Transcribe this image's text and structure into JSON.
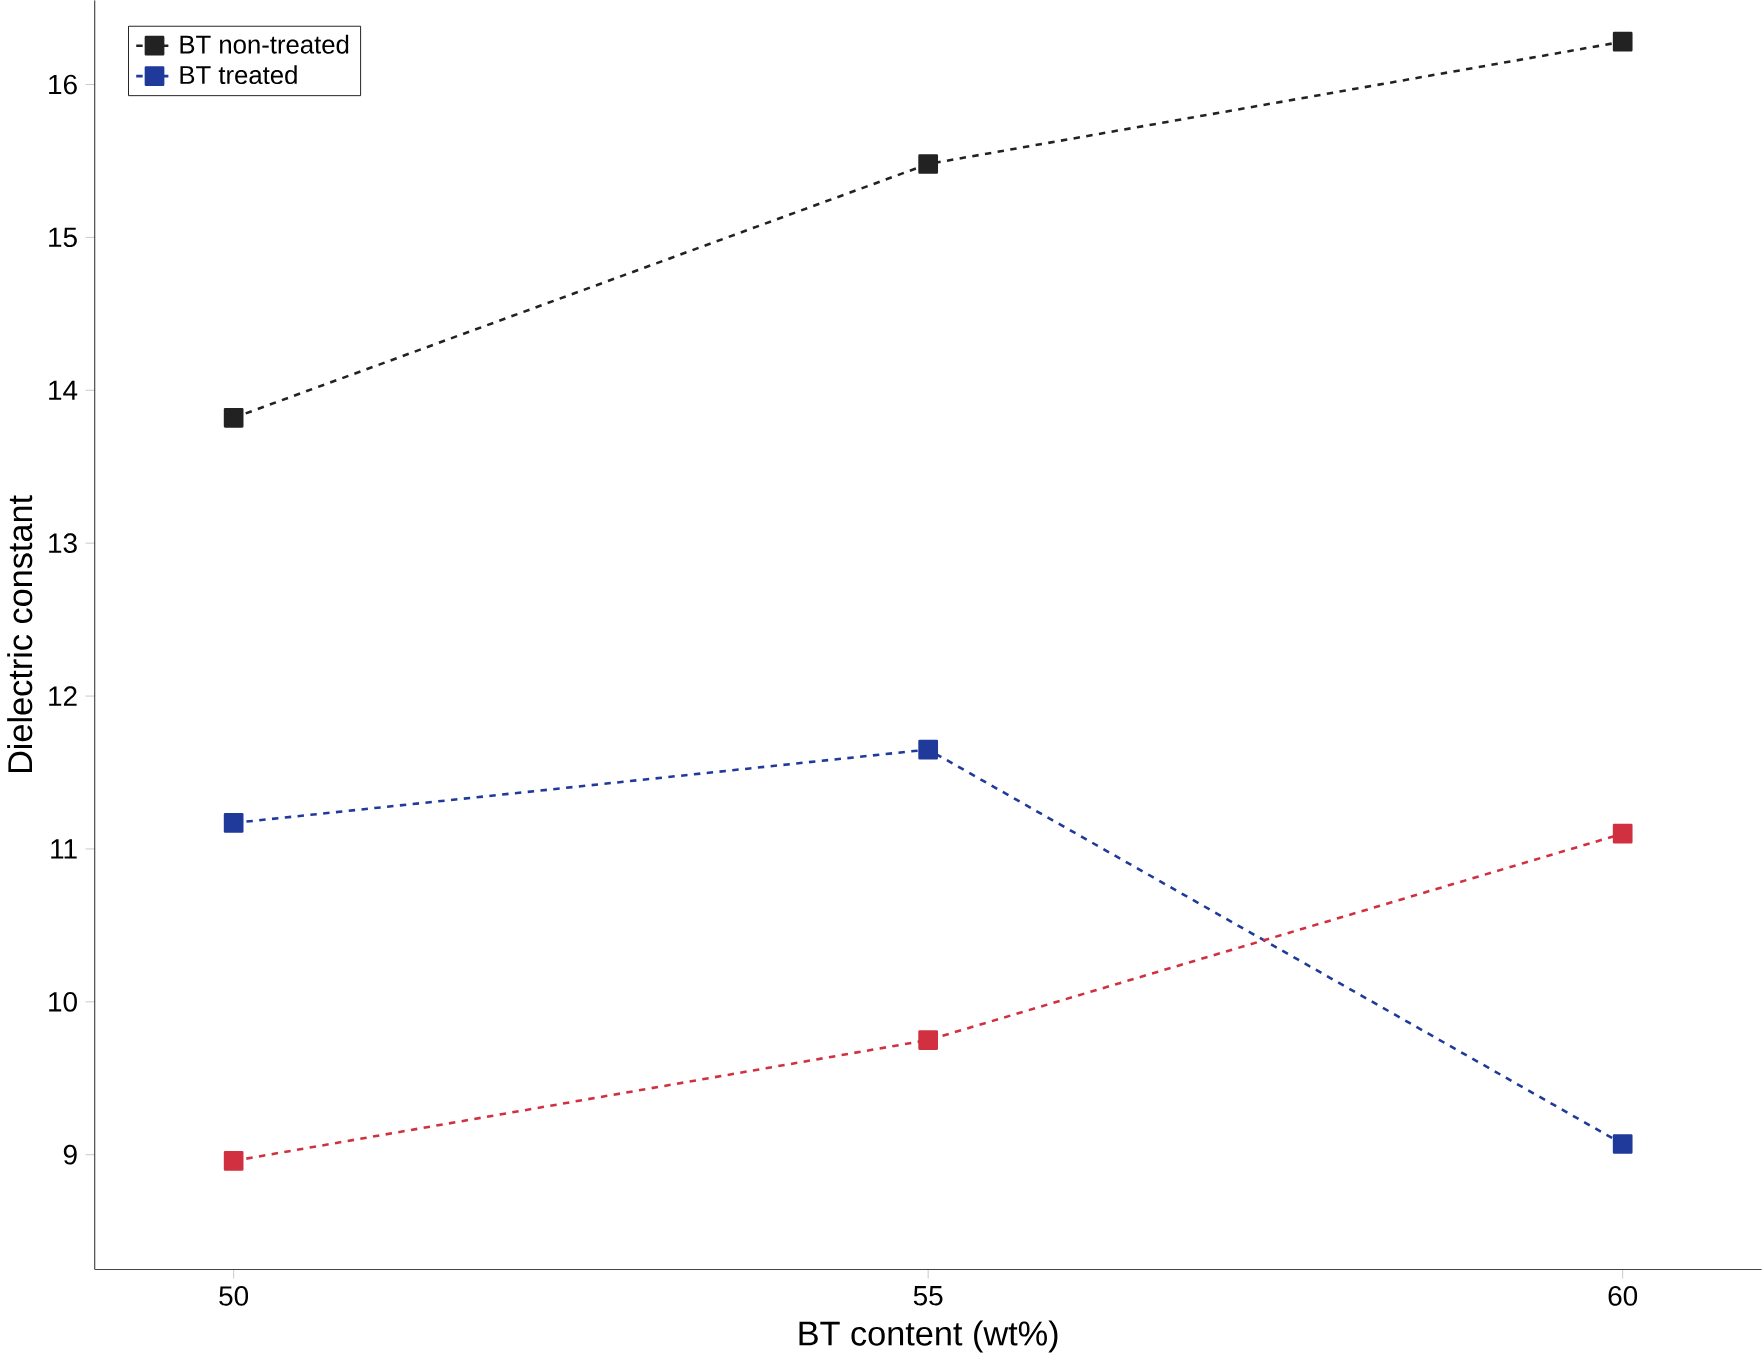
{
  "chart_data": {
    "type": "line",
    "xlabel": "BT content (wt%)",
    "ylabel": "Dielectric constant",
    "x": [
      50,
      55,
      60
    ],
    "series": [
      {
        "name": "BT non-treated",
        "color": "#222222",
        "values": [
          13.82,
          15.48,
          16.28
        ]
      },
      {
        "name": "BT treated",
        "color": "#1f3a9a",
        "values": [
          11.17,
          11.65,
          9.07
        ]
      },
      {
        "color": "#d03040",
        "values": [
          8.96,
          9.75,
          11.1
        ]
      }
    ],
    "xlim": [
      49,
      61
    ],
    "ylim": [
      8.25,
      16.55
    ],
    "xticks": [
      50,
      55,
      60
    ],
    "yticks": [
      9,
      10,
      11,
      12,
      13,
      14,
      15,
      16
    ],
    "grid": false,
    "legend": "top left",
    "marker": "square",
    "line_style": "dashed"
  }
}
